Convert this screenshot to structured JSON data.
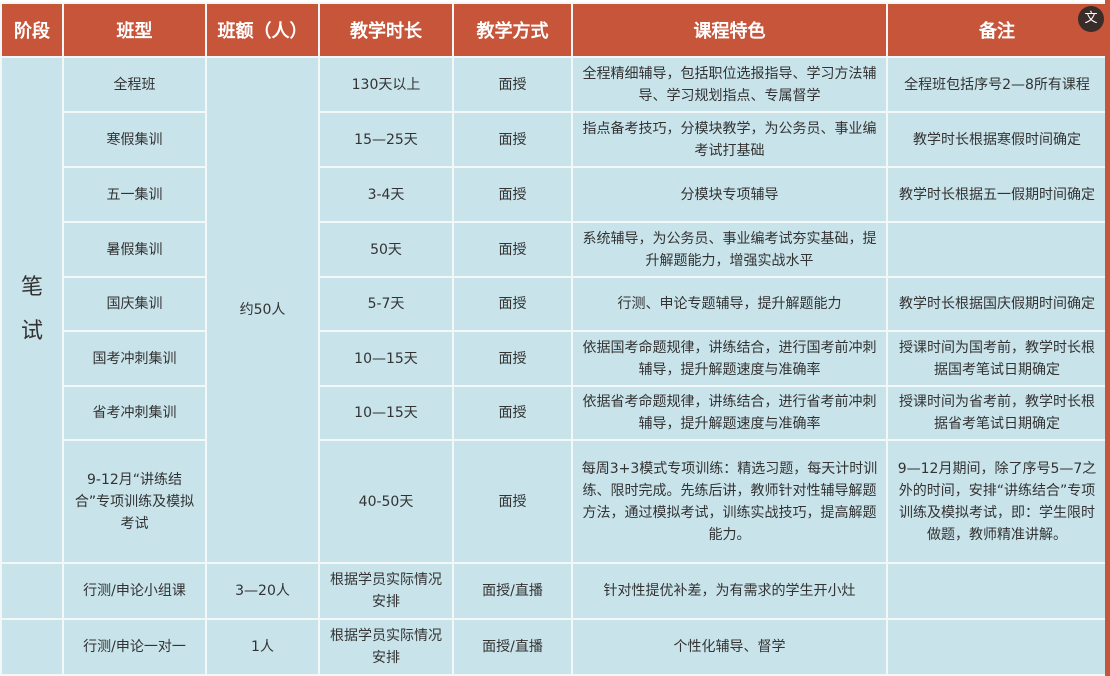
{
  "headers": [
    "阶段",
    "班型",
    "班额（人）",
    "教学时长",
    "教学方式",
    "课程特色",
    "备注"
  ],
  "stage": "笔\n试",
  "shared_capacity": "约50人",
  "rows": [
    {
      "type": "全程班",
      "duration": "130天以上",
      "mode": "面授",
      "feature": "全程精细辅导，包括职位选报指导、学习方法辅导、学习规划指点、专属督学",
      "note": "全程班包括序号2—8所有课程"
    },
    {
      "type": "寒假集训",
      "duration": "15—25天",
      "mode": "面授",
      "feature": "指点备考技巧，分模块教学，为公务员、事业编考试打基础",
      "note": "教学时长根据寒假时间确定"
    },
    {
      "type": "五一集训",
      "duration": "3-4天",
      "mode": "面授",
      "feature": "分模块专项辅导",
      "note": "教学时长根据五一假期时间确定"
    },
    {
      "type": "暑假集训",
      "duration": "50天",
      "mode": "面授",
      "feature": "系统辅导，为公务员、事业编考试夯实基础，提升解题能力，增强实战水平",
      "note": ""
    },
    {
      "type": "国庆集训",
      "duration": "5-7天",
      "mode": "面授",
      "feature": "行测、申论专题辅导，提升解题能力",
      "note": "教学时长根据国庆假期时间确定"
    },
    {
      "type": "国考冲刺集训",
      "duration": "10—15天",
      "mode": "面授",
      "feature": "依据国考命题规律，讲练结合，进行国考前冲刺辅导，提升解题速度与准确率",
      "note": "授课时间为国考前，教学时长根据国考笔试日期确定"
    },
    {
      "type": "省考冲刺集训",
      "duration": "10—15天",
      "mode": "面授",
      "feature": "依据省考命题规律，讲练结合，进行省考前冲刺辅导，提升解题速度与准确率",
      "note": "授课时间为省考前，教学时长根据省考笔试日期确定"
    },
    {
      "type": "9-12月“讲练结合”专项训练及模拟考试",
      "duration": "40-50天",
      "mode": "面授",
      "feature": "每周3+3模式专项训练：精选习题，每天计时训练、限时完成。先练后讲，教师针对性辅导解题方法，通过模拟考试，训练实战技巧，提高解题能力。",
      "note": "9—12月期间，除了序号5—7之外的时间，安排“讲练结合”专项训练及模拟考试，即：学生限时做题，教师精准讲解。"
    }
  ],
  "extra_rows": [
    {
      "type": "行测/申论小组课",
      "capacity": "3—20人",
      "duration": "根据学员实际情况安排",
      "mode": "面授/直播",
      "feature": "针对性提优补差，为有需求的学生开小灶",
      "note": ""
    },
    {
      "type": "行测/申论一对一",
      "capacity": "1人",
      "duration": "根据学员实际情况安排",
      "mode": "面授/直播",
      "feature": "个性化辅导、督学",
      "note": ""
    }
  ],
  "colors": {
    "header": "#c6553a",
    "cell": "#c8e3ea"
  },
  "icons": {
    "translate": "translate-icon"
  }
}
